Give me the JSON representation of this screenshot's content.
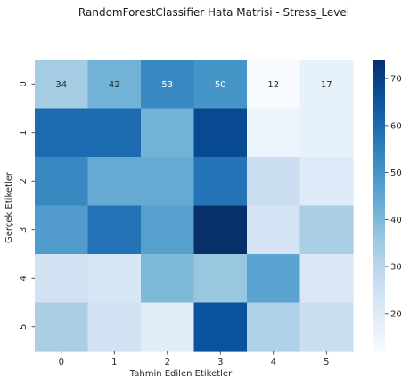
{
  "chart_data": {
    "type": "heatmap",
    "title": "RandomForestClassifier Hata Matrisi - Stress_Level",
    "xlabel": "Tahmin Edilen Etiketler",
    "ylabel": "Gerçek Etiketler",
    "x_ticks": [
      "0",
      "1",
      "2",
      "3",
      "4",
      "5"
    ],
    "y_ticks": [
      "0",
      "1",
      "2",
      "3",
      "4",
      "5"
    ],
    "annotated_row": 0,
    "values": [
      [
        34,
        42,
        53,
        50,
        12,
        17
      ],
      [
        60,
        60,
        42,
        68,
        15,
        17
      ],
      [
        53,
        44,
        44,
        58,
        26,
        20
      ],
      [
        48,
        58,
        47,
        74,
        23,
        33
      ],
      [
        24,
        22,
        40,
        36,
        46,
        21
      ],
      [
        33,
        24,
        19,
        66,
        32,
        26
      ]
    ],
    "colormap": "Blues",
    "vmin": 12,
    "vmax": 74,
    "colorbar_ticks": [
      "20",
      "30",
      "40",
      "50",
      "60",
      "70"
    ],
    "colorbar_tick_values": [
      20,
      30,
      40,
      50,
      60,
      70
    ]
  }
}
